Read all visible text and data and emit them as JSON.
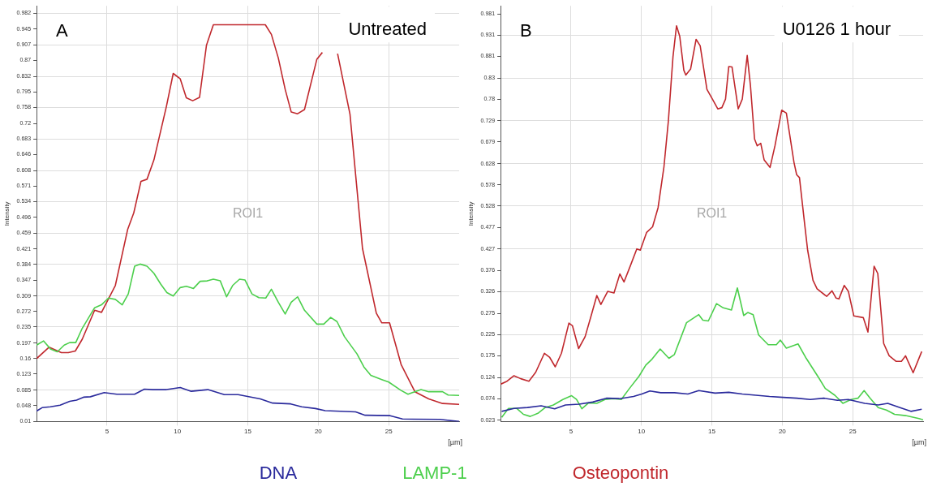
{
  "chart_data": [
    {
      "type": "line",
      "title": "Untreated",
      "annotations": [
        "A",
        "ROI1"
      ],
      "xlabel": "[µm]",
      "ylabel": "Intensity",
      "xlim": [
        0,
        30
      ],
      "xticks": [
        5,
        10,
        15,
        20,
        25
      ],
      "ylim": [
        0.01,
        1.0
      ],
      "yticks": [
        0.01,
        0.048,
        0.085,
        0.123,
        0.16,
        0.197,
        0.235,
        0.272,
        0.309,
        0.347,
        0.384,
        0.421,
        0.459,
        0.496,
        0.534,
        0.571,
        0.608,
        0.646,
        0.683,
        0.72,
        0.758,
        0.795,
        0.832,
        0.87,
        0.907,
        0.945,
        0.982
      ],
      "grid": true,
      "legend": "bottom",
      "series": [
        {
          "name": "DNA",
          "color": "#2a2a9c",
          "x": [
            0,
            0.39,
            0.98,
            1.67,
            2.35,
            2.84,
            3.33,
            3.82,
            4.8,
            5.69,
            6.96,
            7.65,
            8.24,
            9.22,
            10.2,
            10.98,
            12.16,
            13.33,
            14.31,
            15.88,
            16.76,
            18.04,
            18.82,
            19.8,
            20.49,
            22.65,
            23.33,
            25.1,
            25.98,
            28.63,
            30
          ],
          "values": [
            0.035,
            0.043,
            0.045,
            0.049,
            0.058,
            0.061,
            0.068,
            0.069,
            0.079,
            0.075,
            0.075,
            0.087,
            0.086,
            0.086,
            0.091,
            0.082,
            0.086,
            0.074,
            0.074,
            0.064,
            0.054,
            0.052,
            0.045,
            0.041,
            0.036,
            0.033,
            0.025,
            0.024,
            0.016,
            0.015,
            0.01
          ]
        },
        {
          "name": "LAMP-1",
          "color": "#4ccf4c",
          "x": [
            0,
            0.49,
            0.98,
            1.47,
            1.96,
            2.35,
            2.78,
            3.24,
            4.12,
            4.61,
            5.1,
            5.59,
            6.08,
            6.51,
            6.96,
            7.35,
            7.84,
            8.33,
            8.82,
            9.25,
            9.7,
            10.2,
            10.63,
            11.14,
            11.61,
            12.12,
            12.55,
            13.04,
            13.49,
            13.92,
            14.41,
            14.8,
            15.29,
            15.78,
            16.27,
            16.67,
            17.16,
            17.65,
            18.08,
            18.53,
            19.02,
            19.9,
            20.39,
            20.88,
            21.33,
            21.86,
            22.75,
            23.24,
            23.73,
            24.51,
            25,
            25.88,
            26.37,
            26.86,
            27.29,
            27.84,
            28.82,
            29.22,
            30
          ],
          "values": [
            0.192,
            0.202,
            0.183,
            0.176,
            0.192,
            0.198,
            0.198,
            0.232,
            0.281,
            0.288,
            0.304,
            0.301,
            0.288,
            0.314,
            0.38,
            0.385,
            0.38,
            0.363,
            0.337,
            0.317,
            0.309,
            0.329,
            0.332,
            0.327,
            0.344,
            0.345,
            0.349,
            0.345,
            0.307,
            0.334,
            0.349,
            0.347,
            0.314,
            0.305,
            0.304,
            0.325,
            0.294,
            0.266,
            0.294,
            0.307,
            0.275,
            0.242,
            0.242,
            0.258,
            0.248,
            0.212,
            0.171,
            0.14,
            0.12,
            0.11,
            0.104,
            0.084,
            0.075,
            0.081,
            0.086,
            0.081,
            0.081,
            0.073,
            0.072
          ]
        },
        {
          "name": "Osteopontin",
          "color": "#c0282d",
          "x": [
            0,
            0.88,
            1.76,
            2.25,
            2.75,
            3.24,
            4.12,
            4.61,
            5.59,
            6.47,
            6.9,
            7.41,
            7.84,
            8.33,
            9.22,
            9.7,
            10.2,
            10.63,
            11.08,
            11.57,
            12.06,
            12.55,
            16.24,
            16.67,
            17.16,
            17.65,
            18.08,
            18.53,
            19.02,
            19.9,
            20.29,
            20.8,
            21.37,
            22.25,
            23.14,
            24.12,
            24.51,
            25.06,
            25.88,
            26.86,
            27.84,
            28.82,
            30
          ],
          "values": [
            0.16,
            0.187,
            0.174,
            0.174,
            0.178,
            0.206,
            0.275,
            0.27,
            0.334,
            0.468,
            0.507,
            0.582,
            0.587,
            0.633,
            0.761,
            0.839,
            0.826,
            0.781,
            0.774,
            0.782,
            0.906,
            0.955,
            0.955,
            0.932,
            0.876,
            0.801,
            0.747,
            0.743,
            0.753,
            0.873,
            0.889,
            null,
            0.886,
            0.742,
            0.422,
            0.268,
            0.245,
            0.245,
            0.146,
            0.081,
            0.064,
            0.053,
            0.051
          ]
        }
      ]
    },
    {
      "type": "line",
      "title": "U0126 1 hour",
      "annotations": [
        "B",
        "ROI1"
      ],
      "xlabel": "[µm]",
      "ylabel": "Intensity",
      "xlim": [
        0,
        30
      ],
      "xticks": [
        5,
        10,
        15,
        20,
        25
      ],
      "ylim": [
        0.02,
        1.0
      ],
      "yticks": [
        0.023,
        0.074,
        0.124,
        0.175,
        0.225,
        0.275,
        0.326,
        0.376,
        0.427,
        0.477,
        0.528,
        0.578,
        0.628,
        0.679,
        0.729,
        0.78,
        0.83,
        0.881,
        0.931,
        0.981
      ],
      "grid": true,
      "series": [
        {
          "color": "#2a2a9c",
          "x": [
            0.08,
            0.95,
            1.91,
            2.88,
            3.84,
            4.61,
            5.58,
            6.54,
            7.51,
            8.47,
            9.44,
            10.02,
            10.6,
            11.37,
            12.34,
            13.3,
            14.07,
            15.23,
            16.2,
            17.16,
            18.13,
            19.09,
            20.06,
            21.02,
            21.99,
            22.95,
            23.92,
            24.69,
            25.85,
            26.81,
            27.49,
            28.36,
            29.13,
            29.9
          ],
          "values": [
            0.044,
            0.051,
            0.053,
            0.057,
            0.05,
            0.059,
            0.061,
            0.066,
            0.075,
            0.074,
            0.079,
            0.085,
            0.092,
            0.088,
            0.088,
            0.085,
            0.093,
            0.087,
            0.089,
            0.085,
            0.082,
            0.079,
            0.077,
            0.075,
            0.072,
            0.075,
            0.07,
            0.072,
            0.063,
            0.059,
            0.063,
            0.053,
            0.044,
            0.049
          ]
        },
        {
          "color": "#4ccf4c",
          "x": [
            0.08,
            0.56,
            1.14,
            1.62,
            2.1,
            2.68,
            3.17,
            3.75,
            4.42,
            5.04,
            5.39,
            5.77,
            6.25,
            6.83,
            7.41,
            7.99,
            8.57,
            9.15,
            9.83,
            10.31,
            10.75,
            11.33,
            11.95,
            12.34,
            13.2,
            14.07,
            14.36,
            14.75,
            15.33,
            15.81,
            16.39,
            16.81,
            17.26,
            17.55,
            17.93,
            18.32,
            19.0,
            19.58,
            19.86,
            20.29,
            21.12,
            21.7,
            22.57,
            23.05,
            23.73,
            24.3,
            24.88,
            25.37,
            25.81,
            26.24,
            26.81,
            27.39,
            27.97,
            28.75,
            29.71,
            30
          ],
          "values": [
            0.03,
            0.051,
            0.051,
            0.037,
            0.032,
            0.04,
            0.053,
            0.059,
            0.072,
            0.081,
            0.072,
            0.05,
            0.064,
            0.063,
            0.072,
            0.074,
            0.072,
            0.098,
            0.127,
            0.153,
            0.167,
            0.191,
            0.169,
            0.178,
            0.253,
            0.272,
            0.259,
            0.257,
            0.298,
            0.288,
            0.283,
            0.335,
            0.27,
            0.277,
            0.272,
            0.224,
            0.201,
            0.201,
            0.212,
            0.193,
            0.203,
            0.169,
            0.124,
            0.098,
            0.082,
            0.063,
            0.072,
            0.075,
            0.093,
            0.075,
            0.053,
            0.047,
            0.037,
            0.034,
            0.027,
            0.024
          ]
        },
        {
          "color": "#c0282d",
          "x": [
            0,
            0.46,
            0.95,
            1.43,
            2.01,
            2.49,
            3.11,
            3.49,
            3.88,
            4.32,
            4.85,
            5.1,
            5.54,
            6.0,
            6.45,
            6.83,
            7.12,
            7.61,
            8.05,
            8.47,
            8.76,
            9.21,
            9.67,
            9.92,
            10.37,
            10.79,
            11.18,
            11.6,
            11.91,
            12.24,
            12.49,
            12.72,
            13.01,
            13.15,
            13.49,
            13.88,
            14.17,
            14.65,
            15.04,
            15.42,
            15.71,
            15.97,
            16.2,
            16.43,
            16.87,
            17.16,
            17.51,
            17.74,
            18.03,
            18.22,
            18.47,
            18.71,
            19.13,
            19.48,
            19.96,
            20.29,
            20.83,
            21.02,
            21.22,
            21.6,
            21.8,
            22.18,
            22.47,
            23.15,
            23.53,
            23.82,
            24.02,
            24.4,
            24.69,
            25.08,
            25.75,
            26.08,
            26.52,
            26.78,
            27.2,
            27.59,
            28.07,
            28.46,
            28.75,
            29.29,
            29.9
          ],
          "values": [
            0.108,
            0.115,
            0.128,
            0.121,
            0.115,
            0.136,
            0.181,
            0.171,
            0.149,
            0.181,
            0.252,
            0.246,
            0.192,
            0.22,
            0.272,
            0.317,
            0.296,
            0.327,
            0.323,
            0.368,
            0.349,
            0.387,
            0.427,
            0.424,
            0.466,
            0.479,
            0.524,
            0.621,
            0.728,
            0.88,
            0.953,
            0.928,
            0.848,
            0.837,
            0.851,
            0.921,
            0.906,
            0.803,
            0.78,
            0.757,
            0.76,
            0.78,
            0.857,
            0.856,
            0.757,
            0.78,
            0.883,
            0.812,
            0.686,
            0.67,
            0.676,
            0.637,
            0.619,
            0.67,
            0.754,
            0.747,
            0.631,
            0.602,
            0.595,
            0.482,
            0.424,
            0.353,
            0.333,
            0.315,
            0.328,
            0.311,
            0.309,
            0.341,
            0.327,
            0.269,
            0.265,
            0.231,
            0.386,
            0.369,
            0.204,
            0.175,
            0.162,
            0.162,
            0.175,
            0.135,
            0.185
          ]
        }
      ]
    }
  ]
}
